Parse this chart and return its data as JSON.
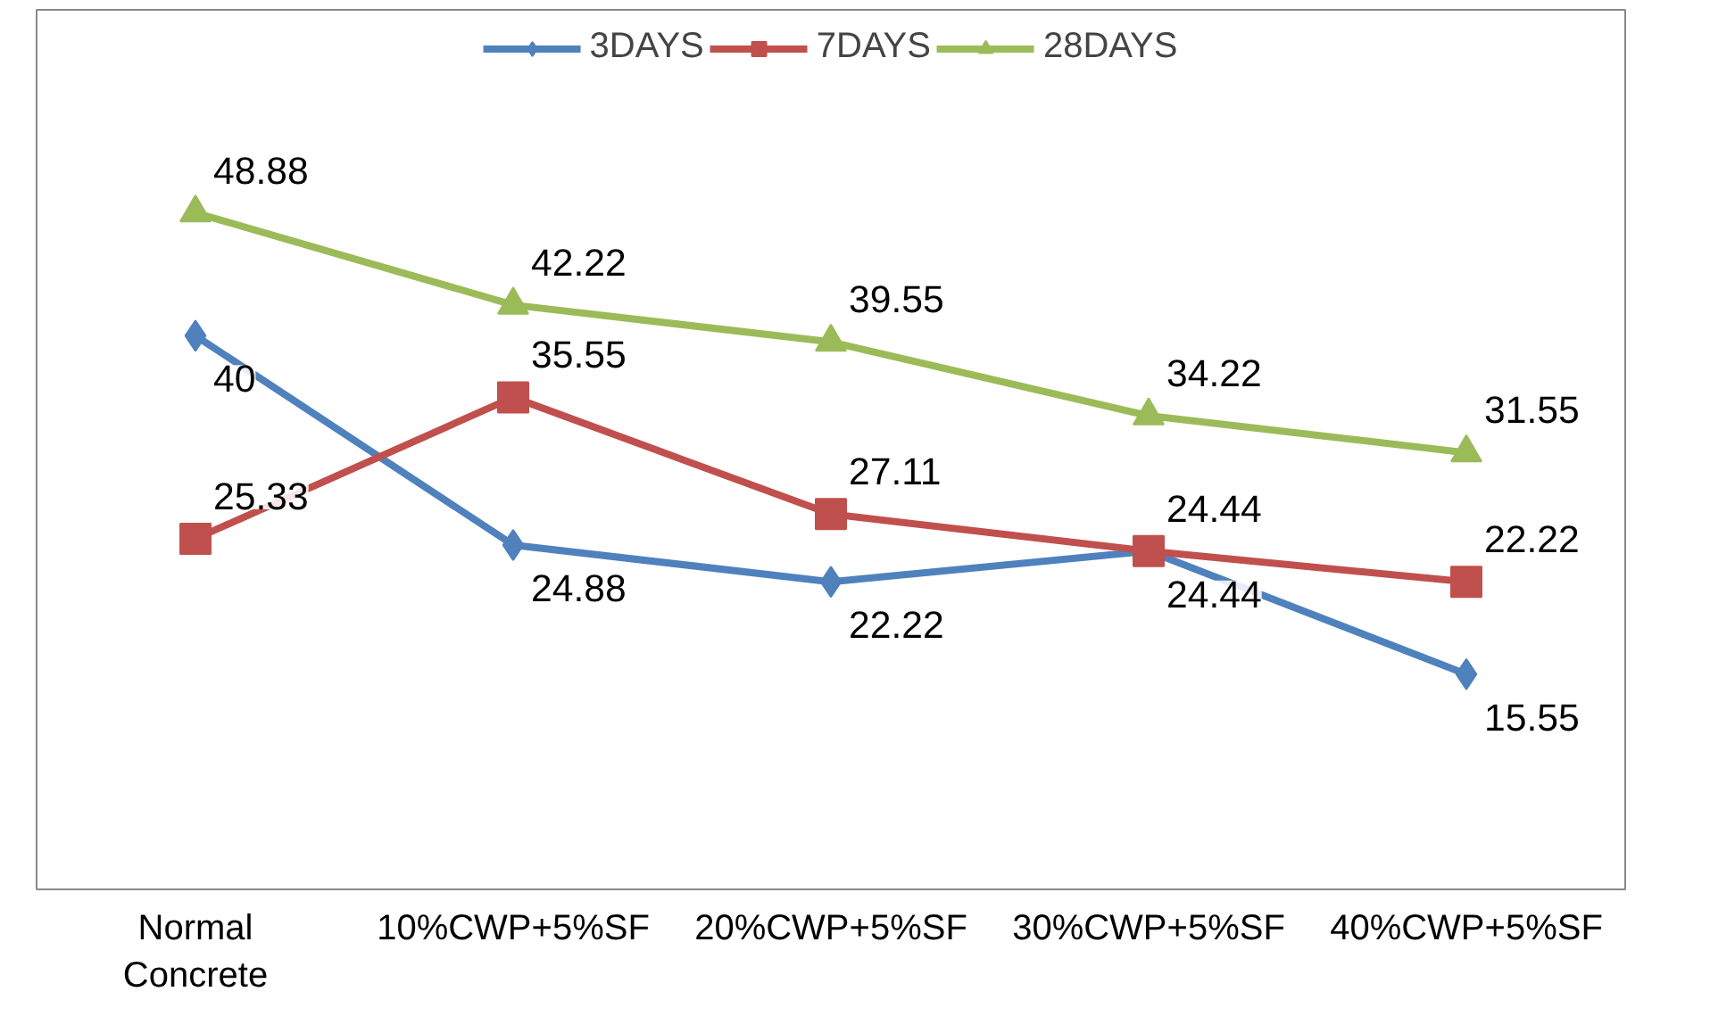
{
  "chart_data": {
    "type": "line",
    "categories": [
      "Normal Concrete",
      "10%CWP+5%SF",
      "20%CWP+5%SF",
      "30%CWP+5%SF",
      "40%CWP+5%SF"
    ],
    "series": [
      {
        "name": "3DAYS",
        "color": "#4f81bd",
        "marker": "diamond",
        "values": [
          40,
          24.88,
          22.22,
          24.44,
          15.55
        ]
      },
      {
        "name": "7DAYS",
        "color": "#c0504d",
        "marker": "square",
        "values": [
          25.33,
          35.55,
          27.11,
          24.44,
          22.22
        ]
      },
      {
        "name": "28DAYS",
        "color": "#9bbb59",
        "marker": "triangle",
        "values": [
          48.88,
          42.22,
          39.55,
          34.22,
          31.55
        ]
      }
    ],
    "data_labels": true,
    "legend": "top",
    "tick_labels": "x"
  }
}
